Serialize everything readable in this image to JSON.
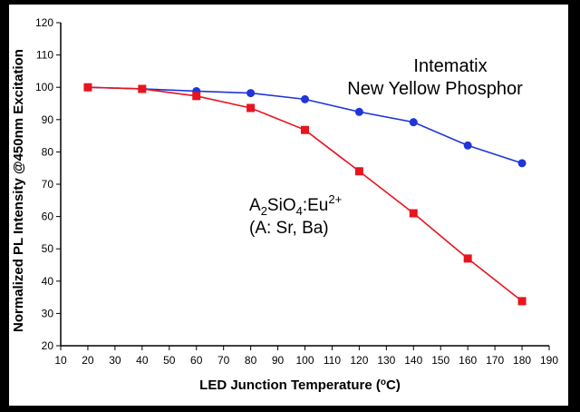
{
  "chart_data": {
    "type": "line",
    "xlabel_main": "LED Junction Temperature (",
    "xlabel_unit": "o",
    "xlabel_tail": "C)",
    "ylabel": "Normalized PL Intensity @450nm Excitation",
    "xlim": [
      10,
      190
    ],
    "ylim": [
      20,
      120
    ],
    "xticks": [
      10,
      20,
      30,
      40,
      50,
      60,
      70,
      80,
      90,
      100,
      110,
      120,
      130,
      140,
      150,
      160,
      170,
      180,
      190
    ],
    "yticks": [
      20,
      30,
      40,
      50,
      60,
      70,
      80,
      90,
      100,
      110,
      120
    ],
    "grid": false,
    "series": [
      {
        "name": "Intematix New Yellow Phosphor",
        "color": "#1f35d9",
        "marker": "circle",
        "x": [
          20,
          40,
          60,
          80,
          100,
          120,
          140,
          160,
          180
        ],
        "y": [
          100,
          99.5,
          98.8,
          98.2,
          96.3,
          92.4,
          89.2,
          82,
          76.5
        ]
      },
      {
        "name": "A2SiO4:Eu2+ (A: Sr, Ba)",
        "color": "#e8141e",
        "marker": "square",
        "x": [
          20,
          40,
          60,
          80,
          100,
          120,
          140,
          160,
          180
        ],
        "y": [
          100,
          99.5,
          97.3,
          93.6,
          86.8,
          74,
          61,
          47,
          33.8
        ]
      }
    ],
    "annotations": {
      "intematix_line1": "Intematix",
      "intematix_line2": "New Yellow Phosphor",
      "formula_a": "A",
      "formula_a_sub": "2",
      "formula_si": "SiO",
      "formula_si_sub": "4",
      "formula_eu": ":Eu",
      "formula_eu_sup": "2+",
      "formula_line2": "(A: Sr, Ba)"
    }
  }
}
